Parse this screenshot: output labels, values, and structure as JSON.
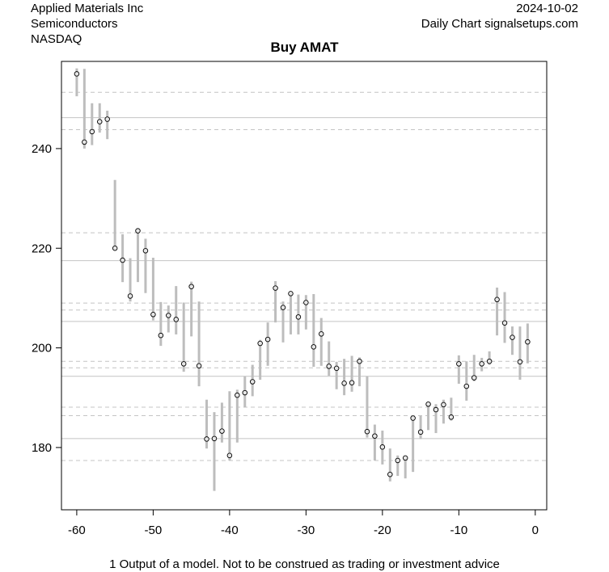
{
  "header": {
    "company": "Applied Materials Inc",
    "sector": "Semiconductors",
    "exchange": "NASDAQ",
    "date": "2024-10-02",
    "source": "Daily Chart signalsetups.com"
  },
  "footnote": "1 Output of a model. Not to be construed as trading or investment advice",
  "chart_data": {
    "type": "scatter",
    "title": "Buy AMAT",
    "xlabel": "",
    "ylabel": "",
    "xlim": [
      -62,
      1.5
    ],
    "ylim": [
      167.5,
      257.5
    ],
    "x_ticks": [
      -60,
      -50,
      -40,
      -30,
      -20,
      -10,
      0
    ],
    "y_ticks": [
      180,
      200,
      220,
      240
    ],
    "grid": false,
    "colors": {
      "range_bar": "#bdbdbd",
      "close_point_fill": "#e6e6e6",
      "close_point_stroke": "#000000",
      "solid_level": "#c4c4c4",
      "dashed_level": "#c4c4c4"
    },
    "solid_levels": [
      246.2,
      217.5,
      205.3,
      194.3,
      181.8
    ],
    "dashed_levels": [
      251.3,
      243.8,
      223.1,
      209.0,
      207.6,
      197.3,
      196.0,
      188.1,
      186.4,
      177.4
    ],
    "series": [
      {
        "x": [
          -60,
          -59,
          -58,
          -57,
          -56,
          -55,
          -54,
          -53,
          -52,
          -51,
          -50,
          -49,
          -48,
          -47,
          -46,
          -45,
          -44,
          -43,
          -42,
          -41,
          -40,
          -39,
          -38,
          -37,
          -36,
          -35,
          -34,
          -33,
          -32,
          -31,
          -30,
          -29,
          -28,
          -27,
          -26,
          -25,
          -24,
          -23,
          -22,
          -21,
          -20,
          -19,
          -18,
          -17,
          -16,
          -15,
          -14,
          -13,
          -12,
          -11,
          -10,
          -9,
          -8,
          -7,
          -6,
          -5,
          -4,
          -3,
          -2,
          -1
        ],
        "close": [
          255.0,
          241.3,
          243.4,
          245.4,
          245.9,
          220.0,
          217.6,
          210.4,
          223.5,
          219.5,
          206.7,
          202.5,
          206.5,
          205.7,
          196.8,
          212.3,
          196.4,
          181.7,
          181.8,
          183.3,
          178.4,
          190.5,
          191.0,
          193.2,
          200.9,
          201.7,
          212.0,
          208.1,
          210.9,
          206.2,
          209.1,
          200.2,
          202.8,
          196.3,
          195.9,
          192.9,
          193.0,
          197.3,
          183.2,
          182.3,
          180.1,
          174.6,
          177.4,
          177.9,
          185.9,
          183.1,
          188.7,
          187.6,
          188.6,
          186.1,
          196.8,
          192.3,
          194.0,
          196.8,
          197.3,
          209.7,
          205.0,
          202.1,
          197.2,
          201.2
        ],
        "low": [
          250.5,
          240.0,
          240.7,
          243.2,
          241.9,
          219.5,
          213.2,
          209.3,
          213.2,
          211.0,
          205.5,
          200.4,
          203.1,
          202.7,
          195.2,
          202.3,
          192.3,
          179.8,
          171.3,
          181.0,
          177.4,
          181.0,
          188.1,
          190.3,
          193.6,
          196.4,
          205.1,
          201.1,
          202.7,
          202.7,
          203.7,
          196.2,
          196.4,
          194.4,
          191.7,
          190.5,
          191.2,
          192.3,
          182.0,
          177.4,
          176.6,
          173.2,
          174.3,
          173.8,
          175.1,
          181.7,
          183.5,
          182.9,
          184.8,
          185.4,
          192.8,
          189.4,
          193.3,
          195.3,
          196.6,
          202.5,
          201.0,
          198.6,
          193.6,
          196.9
        ],
        "high": [
          256.1,
          256.0,
          249.1,
          249.1,
          247.6,
          233.7,
          222.8,
          218.0,
          223.6,
          221.9,
          218.1,
          209.2,
          208.5,
          212.4,
          209.1,
          213.3,
          209.3,
          189.6,
          187.1,
          189.0,
          191.3,
          191.6,
          194.3,
          196.6,
          201.6,
          205.1,
          213.4,
          209.3,
          211.3,
          210.7,
          210.6,
          210.8,
          206.0,
          201.3,
          197.2,
          197.8,
          198.4,
          198.1,
          194.3,
          184.6,
          183.4,
          179.8,
          178.4,
          178.4,
          186.3,
          186.4,
          189.1,
          188.7,
          189.6,
          190.0,
          198.5,
          197.3,
          198.6,
          198.0,
          199.3,
          212.1,
          211.2,
          204.3,
          204.3,
          204.9
        ]
      }
    ]
  }
}
